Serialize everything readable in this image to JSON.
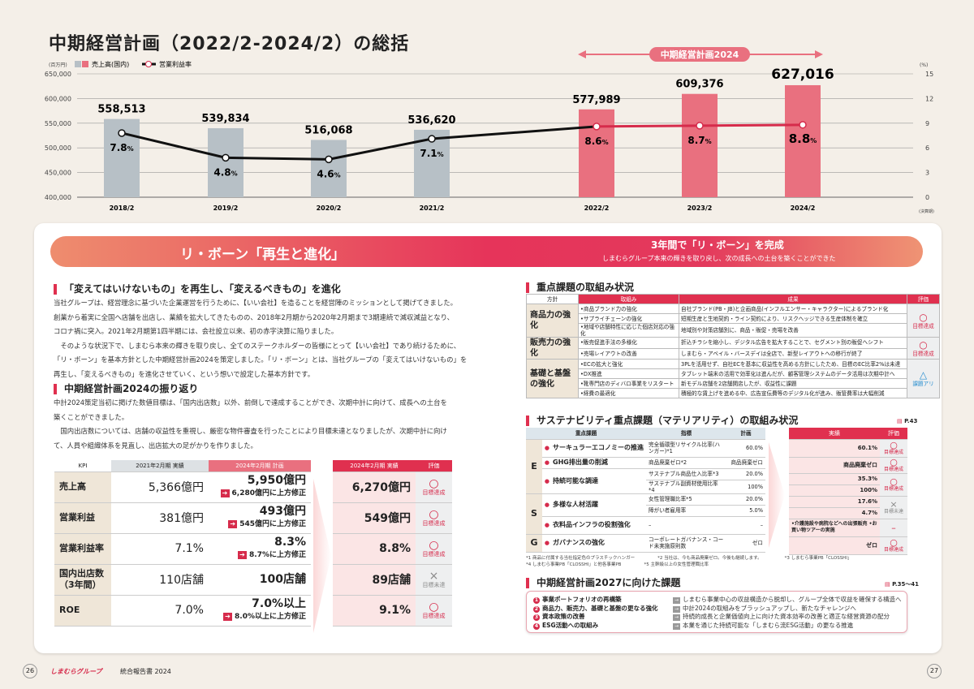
{
  "title": "中期経営計画（2022/2-2024/2）の総括",
  "chart_data": {
    "type": "bar+line",
    "unit_left": "(百万円)",
    "unit_right": "(%)",
    "x_note": "(決算期)",
    "legend": [
      "売上高(国内)",
      "営業利益率"
    ],
    "plan_label": "中期経営計画2024",
    "categories": [
      "2018/2",
      "2019/2",
      "2020/2",
      "2021/2",
      "2022/2",
      "2023/2",
      "2024/2"
    ],
    "series": [
      {
        "name": "売上高(国内)",
        "type": "bar",
        "values": [
          558513,
          539834,
          516068,
          536620,
          577989,
          609376,
          627016
        ],
        "labels": [
          "558,513",
          "539,834",
          "516,068",
          "536,620",
          "577,989",
          "609,376",
          "627,016"
        ]
      },
      {
        "name": "営業利益率",
        "type": "line",
        "values": [
          7.8,
          4.8,
          4.6,
          7.1,
          8.6,
          8.7,
          8.8
        ],
        "labels": [
          "7.8",
          "4.8",
          "4.6",
          "7.1",
          "8.6",
          "8.7",
          "8.8"
        ]
      }
    ],
    "ylim": [
      400000,
      650000
    ],
    "y2lim": [
      0,
      15
    ],
    "yticks": [
      "400,000",
      "450,000",
      "500,000",
      "550,000",
      "600,000",
      "650,000"
    ],
    "y2ticks": [
      "0",
      "3",
      "6",
      "9",
      "12",
      "15"
    ],
    "colors": {
      "past": "#b7c0c6",
      "plan": "#e9707f",
      "line_past": "#111111",
      "line_plan": "#d62b4b"
    }
  },
  "banner": {
    "left": "リ・ボーン「再生と進化」",
    "right_title": "3年間で「リ・ボーン」を完成",
    "right_sub": "しまむらグループ本来の輝きを取り戻し、次の成長への土台を築くことができた"
  },
  "sec1": {
    "title": "「変えてはいけないもの」を再生し、「変えるべきもの」を進化",
    "lines": [
      "当社グループは、経営理念に基づいた企業運営を行うために、【いい会社】を造ることを経営陣のミッションとして掲げてきました。",
      "創業から着実に全国へ店舗を出店し、業績を拡大してきたものの、2018年2月期から2020年2月期まで3期連続で減収減益となり、",
      "コロナ禍に突入。2021年2月期第1四半期には、会社設立以来、初の赤字決算に陥りました。",
      "　そのような状況下で、しまむら本来の輝きを取り戻し、全てのステークホルダーの皆様にとって【いい会社】であり続けるために、",
      "「リ・ボーン」を基本方針とした中期経営計画2024を策定しました。「リ・ボーン」とは、当社グループの「変えてはいけないもの」を",
      "再生し、「変えるべきもの」を進化させていく、という想いで設定した基本方針です。"
    ]
  },
  "sec2": {
    "title": "中期経営計画2024の振り返り",
    "lines": [
      "中計2024策定当初に掲げた数値目標は、「国内出店数」以外、前倒しで達成することができ、次期中計に向けて、成長への土台を",
      "築くことができました。",
      "　国内出店数については、店舗の収益性を重視し、厳密な物件審査を行ったことにより目標未達となりましたが、次期中計に向け",
      "て、人員や組織体系を見直し、出店拡大の足がかりを作りました。"
    ]
  },
  "kpi": {
    "headers": [
      "KPI",
      "2021年2月期 実績",
      "2024年2月期 計画"
    ],
    "rows": [
      {
        "kpi": "売上高",
        "actual": "5,366億円",
        "plan": "5,950億円",
        "rev": "6,280億円に上方修正"
      },
      {
        "kpi": "営業利益",
        "actual": "381億円",
        "plan": "493億円",
        "rev": "545億円に上方修正"
      },
      {
        "kpi": "営業利益率",
        "actual": "7.1%",
        "plan": "8.3%",
        "rev": "8.7%に上方修正"
      },
      {
        "kpi": "国内出店数（3年間）",
        "actual": "110店舗",
        "plan": "100店舗",
        "rev": ""
      },
      {
        "kpi": "ROE",
        "actual": "7.0%",
        "plan": "7.0%以上",
        "rev": "8.0%以上に上方修正"
      }
    ]
  },
  "result": {
    "headers": [
      "2024年2月期 実績",
      "評価"
    ],
    "rows": [
      {
        "value": "6,270億円",
        "mark": "○",
        "eval": "目標達成"
      },
      {
        "value": "549億円",
        "mark": "○",
        "eval": "目標達成"
      },
      {
        "value": "8.8%",
        "mark": "○",
        "eval": "目標達成"
      },
      {
        "value": "89店舗",
        "mark": "×",
        "eval": "目標未達"
      },
      {
        "value": "9.1%",
        "mark": "○",
        "eval": "目標達成"
      }
    ]
  },
  "priority": {
    "title": "重点課題の取組み状況",
    "headers": [
      "方針",
      "取組み",
      "成果",
      "評価"
    ],
    "groups": [
      {
        "policy": "商品力の強化",
        "mark": "○",
        "eval": "目標達成",
        "items": [
          [
            "•商品ブランド力の強化",
            "自社ブランド(PB・JB)と企画商品(インフルエンサー・キャラクター)によるブランド化"
          ],
          [
            "•サプライチェーンの強化",
            "短期生産と生地契約・ライン契約により、リスクヘッジできる生産体制を確立"
          ],
          [
            "•地域や店舗特性に応じた個店対応の強化",
            "地域別や対策店舗別に、商品・販促・売場を改善"
          ]
        ]
      },
      {
        "policy": "販売力の強化",
        "mark": "○",
        "eval": "目標達成",
        "items": [
          [
            "•販売促進手法の多様化",
            "折込チラシを縮小し、デジタル広告を拡大することで、セグメント別の販促へシフト"
          ],
          [
            "•売場レイアウトの改善",
            "しまむら・アベイル・バースデイは全店で、新型レイアウトへの移行が終了"
          ]
        ]
      },
      {
        "policy": "基礎と基盤の強化",
        "mark": "△",
        "eval": "課題アリ",
        "items": [
          [
            "•ECの拡大と強化",
            "3PLを活用せず、自社ECを基本に収益性を高める方針にしたため、目標のEC比率2%は未達"
          ],
          [
            "•DX推進",
            "タブレット端末の活用で効率化は進んだが、顧客管理システムのデータ活用は次期中計へ"
          ],
          [
            "•靴専門店のディバロ事業をリスタート",
            "新モデル店舗を2店舗開店したが、収益性に課題"
          ],
          [
            "•経費の最適化",
            "積極的な賃上げを進める中、広告宣伝費等のデジタル化が進み、販管費率は大幅削減"
          ]
        ]
      }
    ]
  },
  "materiality": {
    "title": "サステナビリティ重点課題（マテリアリティ）の取組み状況",
    "ref": "P.43",
    "headers": [
      "重点課題",
      "指標",
      "計画"
    ],
    "result_headers": [
      "実績",
      "評価"
    ],
    "rows": [
      {
        "g": "E",
        "issue": "サーキュラーエコノミーの推進",
        "metric": "完全循環型リサイクル比率(ハンガー)*1",
        "plan": "60.0%",
        "result": "60.1%",
        "mark": "○",
        "eval": "目標達成"
      },
      {
        "g": "",
        "issue": "GHG排出量の削減",
        "metric": "商品廃棄ゼロ*2",
        "plan": "商品廃棄ゼロ",
        "result": "商品廃棄ゼロ",
        "mark": "○",
        "eval": "目標達成"
      },
      {
        "g": "",
        "issue": "持続可能な調達",
        "metric": "サステナブル商品仕入比率*3",
        "plan": "20.0%",
        "result": "35.3%",
        "mark": "○",
        "eval": "目標達成"
      },
      {
        "g": "",
        "issue": "",
        "metric": "サステナブル副資材使用比率*4",
        "plan": "100%",
        "result": "100%",
        "mark": "",
        "eval": ""
      },
      {
        "g": "S",
        "issue": "多様な人材活躍",
        "metric": "女性管理職比率*5",
        "plan": "20.0%",
        "result": "17.6%",
        "mark": "×",
        "eval": "目標未達"
      },
      {
        "g": "",
        "issue": "",
        "metric": "障がい者雇用率",
        "plan": "5.0%",
        "result": "4.7%",
        "mark": "",
        "eval": ""
      },
      {
        "g": "",
        "issue": "衣料品インフラの役割強化",
        "metric": "–",
        "plan": "–",
        "result": "•介護施設や病院などへの出張販売 •お買い物ツアーの実施",
        "mark": "–",
        "eval": ""
      },
      {
        "g": "G",
        "issue": "ガバナンスの強化",
        "metric": "コーポレートガバナンス・コード未実施原則数",
        "plan": "ゼロ",
        "result": "ゼロ",
        "mark": "○",
        "eval": "目標達成"
      }
    ],
    "notes": [
      "*1 商品に付属する当社指定色のプラスチックハンガー",
      "*2 当社は、今も商品廃棄ゼロ。今後も継続します。",
      "*3 しまむら事業PB「CLOSSHI」",
      "*4 しまむら事業PB「CLOSSHI」と他各事業PB",
      "*5 主幹級以上の女性管理職比率"
    ]
  },
  "plan2027": {
    "title": "中期経営計画2027に向けた課題",
    "ref": "P.35～41",
    "items": [
      {
        "n": "1",
        "issue": "事業ポートフォリオの再構築",
        "action": "しまむら事業中心の収益構造から脱却し、グループ全体で収益を確保する構造へ"
      },
      {
        "n": "2",
        "issue": "商品力、販売力、基礎と基盤の更なる強化",
        "action": "中計2024の取組みをブラッシュアップし、新たなチャレンジへ"
      },
      {
        "n": "3",
        "issue": "資本政策の改善",
        "action": "持続的成長と企業価値向上に向けた資本効率の改善と適正な経営資源の配分"
      },
      {
        "n": "4",
        "issue": "ESG活動への取組み",
        "action": "本業を通じた持続可能な「しまむら流ESG活動」の更なる推進"
      }
    ]
  },
  "footer": {
    "page_left": "26",
    "page_right": "27",
    "brand": "しまむらグループ",
    "report": "統合報告書 2024"
  }
}
